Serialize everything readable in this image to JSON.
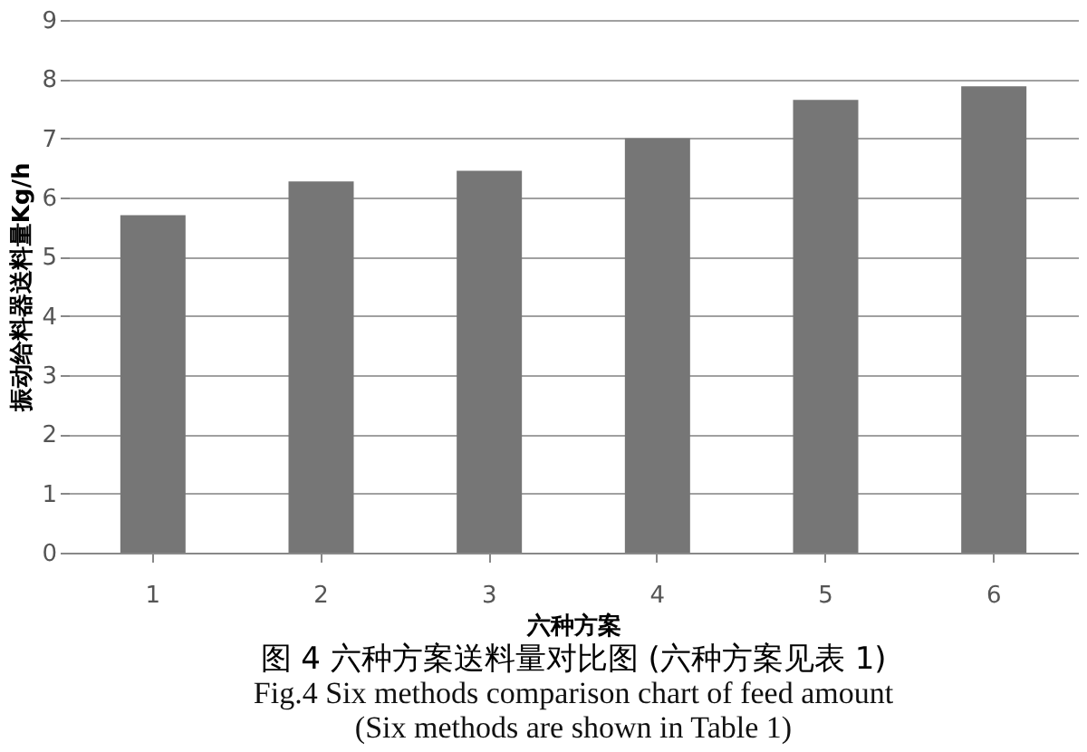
{
  "chart_data": {
    "type": "bar",
    "title": "图 4 六种方案送料量对比图 (六种方案见表 1)",
    "annotations": [
      "Fig.4 Six methods comparison chart of feed amount",
      "(Six methods are shown in Table 1)"
    ],
    "xlabel": "六种方案",
    "ylabel": "振动给料器送料量Kg/h",
    "categories": [
      "1",
      "2",
      "3",
      "4",
      "5",
      "6"
    ],
    "values": [
      5.7,
      6.27,
      6.45,
      7.0,
      7.65,
      7.88
    ],
    "color": "#767676",
    "ylim": [
      0,
      9
    ],
    "yticks": [
      0,
      1,
      2,
      3,
      4,
      5,
      6,
      7,
      8,
      9
    ],
    "grid": "y"
  }
}
